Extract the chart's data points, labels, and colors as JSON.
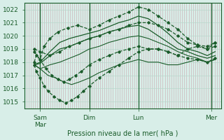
{
  "bg_color": "#d8eee8",
  "grid_color_v": "#c8a8b0",
  "grid_color_h": "#b8d8cc",
  "line_color": "#1a5c2a",
  "ylabel": "Pression niveau de la mer( hPa )",
  "ylim": [
    1014.5,
    1022.5
  ],
  "yticks": [
    1015,
    1016,
    1017,
    1018,
    1019,
    1020,
    1021,
    1022
  ],
  "xlim": [
    0,
    100
  ],
  "xtick_major": [
    8,
    33,
    58,
    95
  ],
  "xtick_labels": [
    "Sam\nMar",
    "Dim",
    "Lun",
    "Mer"
  ],
  "vline_pos": [
    8,
    33,
    58,
    95
  ],
  "lines": [
    {
      "x": [
        5,
        6,
        8,
        10,
        13,
        17,
        22,
        27,
        33,
        38,
        43,
        48,
        53,
        58,
        63,
        68,
        73,
        78,
        83,
        88,
        93,
        97
      ],
      "y": [
        1018.0,
        1018.5,
        1018.2,
        1019.2,
        1019.8,
        1020.3,
        1020.6,
        1020.8,
        1020.5,
        1020.8,
        1021.2,
        1021.5,
        1021.8,
        1022.2,
        1022.0,
        1021.5,
        1021.0,
        1020.5,
        1019.8,
        1019.3,
        1019.0,
        1019.5
      ],
      "style": "--",
      "marker": "D",
      "ms": 1.8,
      "lw": 0.9
    },
    {
      "x": [
        5,
        8,
        13,
        18,
        23,
        28,
        33,
        38,
        43,
        48,
        53,
        58,
        63,
        68,
        73,
        78,
        83,
        88,
        93,
        97
      ],
      "y": [
        1017.8,
        1018.0,
        1018.8,
        1019.5,
        1019.8,
        1020.0,
        1020.2,
        1020.4,
        1020.7,
        1021.0,
        1021.2,
        1021.5,
        1021.3,
        1020.8,
        1020.2,
        1019.5,
        1019.0,
        1018.8,
        1018.5,
        1018.8
      ],
      "style": "-",
      "marker": null,
      "ms": 0,
      "lw": 0.9
    },
    {
      "x": [
        5,
        8,
        13,
        18,
        23,
        28,
        33,
        38,
        43,
        48,
        53,
        58,
        63,
        68,
        73,
        78,
        83,
        88,
        93,
        97
      ],
      "y": [
        1017.8,
        1017.9,
        1018.5,
        1019.0,
        1019.2,
        1019.5,
        1019.8,
        1020.0,
        1020.3,
        1020.5,
        1020.7,
        1020.8,
        1020.5,
        1020.0,
        1019.5,
        1019.0,
        1018.8,
        1018.5,
        1018.3,
        1018.5
      ],
      "style": "-",
      "marker": null,
      "ms": 0,
      "lw": 0.9
    },
    {
      "x": [
        5,
        8,
        13,
        18,
        23,
        28,
        33,
        38,
        43,
        48,
        53,
        58,
        63,
        68,
        73,
        78,
        83,
        88,
        93,
        97
      ],
      "y": [
        1017.8,
        1017.5,
        1017.8,
        1018.0,
        1018.3,
        1018.6,
        1019.0,
        1019.2,
        1019.5,
        1019.7,
        1019.9,
        1020.0,
        1019.8,
        1019.5,
        1019.2,
        1018.8,
        1018.5,
        1018.3,
        1018.0,
        1018.2
      ],
      "style": "-",
      "marker": null,
      "ms": 0,
      "lw": 0.8
    },
    {
      "x": [
        5,
        6,
        8,
        10,
        12,
        15,
        18,
        21,
        24,
        27,
        30,
        33,
        38,
        43,
        48,
        53,
        58,
        63,
        68,
        73,
        78,
        83,
        88,
        93,
        97
      ],
      "y": [
        1017.8,
        1017.3,
        1016.8,
        1016.2,
        1015.8,
        1015.4,
        1015.1,
        1014.9,
        1015.1,
        1015.4,
        1015.8,
        1016.2,
        1016.8,
        1017.3,
        1017.8,
        1018.3,
        1018.8,
        1019.0,
        1019.0,
        1018.8,
        1018.5,
        1018.3,
        1018.2,
        1018.0,
        1018.3
      ],
      "style": "--",
      "marker": "D",
      "ms": 1.8,
      "lw": 0.9
    },
    {
      "x": [
        5,
        8,
        12,
        16,
        20,
        24,
        28,
        33,
        38,
        43,
        48,
        53,
        58,
        63,
        68,
        73,
        78,
        83,
        88,
        93,
        97
      ],
      "y": [
        1017.8,
        1017.5,
        1017.0,
        1016.8,
        1016.5,
        1016.3,
        1016.5,
        1016.8,
        1017.2,
        1017.5,
        1017.8,
        1018.0,
        1018.2,
        1018.0,
        1018.0,
        1017.8,
        1017.8,
        1018.0,
        1018.2,
        1018.0,
        1018.2
      ],
      "style": "-",
      "marker": null,
      "ms": 0,
      "lw": 0.8
    },
    {
      "x": [
        5,
        8,
        11,
        14,
        17,
        20,
        23,
        26,
        29,
        33,
        38,
        43,
        48,
        53,
        58,
        63,
        68,
        73,
        78,
        83,
        88,
        93,
        97
      ],
      "y": [
        1018.8,
        1018.2,
        1017.5,
        1017.0,
        1016.7,
        1016.5,
        1016.7,
        1017.0,
        1017.3,
        1017.8,
        1018.2,
        1018.5,
        1018.8,
        1019.0,
        1019.2,
        1019.0,
        1019.0,
        1018.8,
        1018.5,
        1019.0,
        1019.2,
        1019.0,
        1019.2
      ],
      "style": "--",
      "marker": "D",
      "ms": 1.8,
      "lw": 0.9
    },
    {
      "x": [
        5,
        8,
        13,
        18,
        23,
        28,
        33,
        38,
        43,
        48,
        53,
        58,
        63,
        68,
        73,
        78,
        83,
        88,
        93,
        97
      ],
      "y": [
        1019.0,
        1018.8,
        1018.5,
        1018.8,
        1019.2,
        1019.5,
        1019.8,
        1020.0,
        1020.3,
        1020.5,
        1020.8,
        1021.0,
        1021.0,
        1020.8,
        1020.5,
        1020.0,
        1019.5,
        1019.3,
        1019.2,
        1019.5
      ],
      "style": "--",
      "marker": "D",
      "ms": 1.8,
      "lw": 0.9
    }
  ]
}
